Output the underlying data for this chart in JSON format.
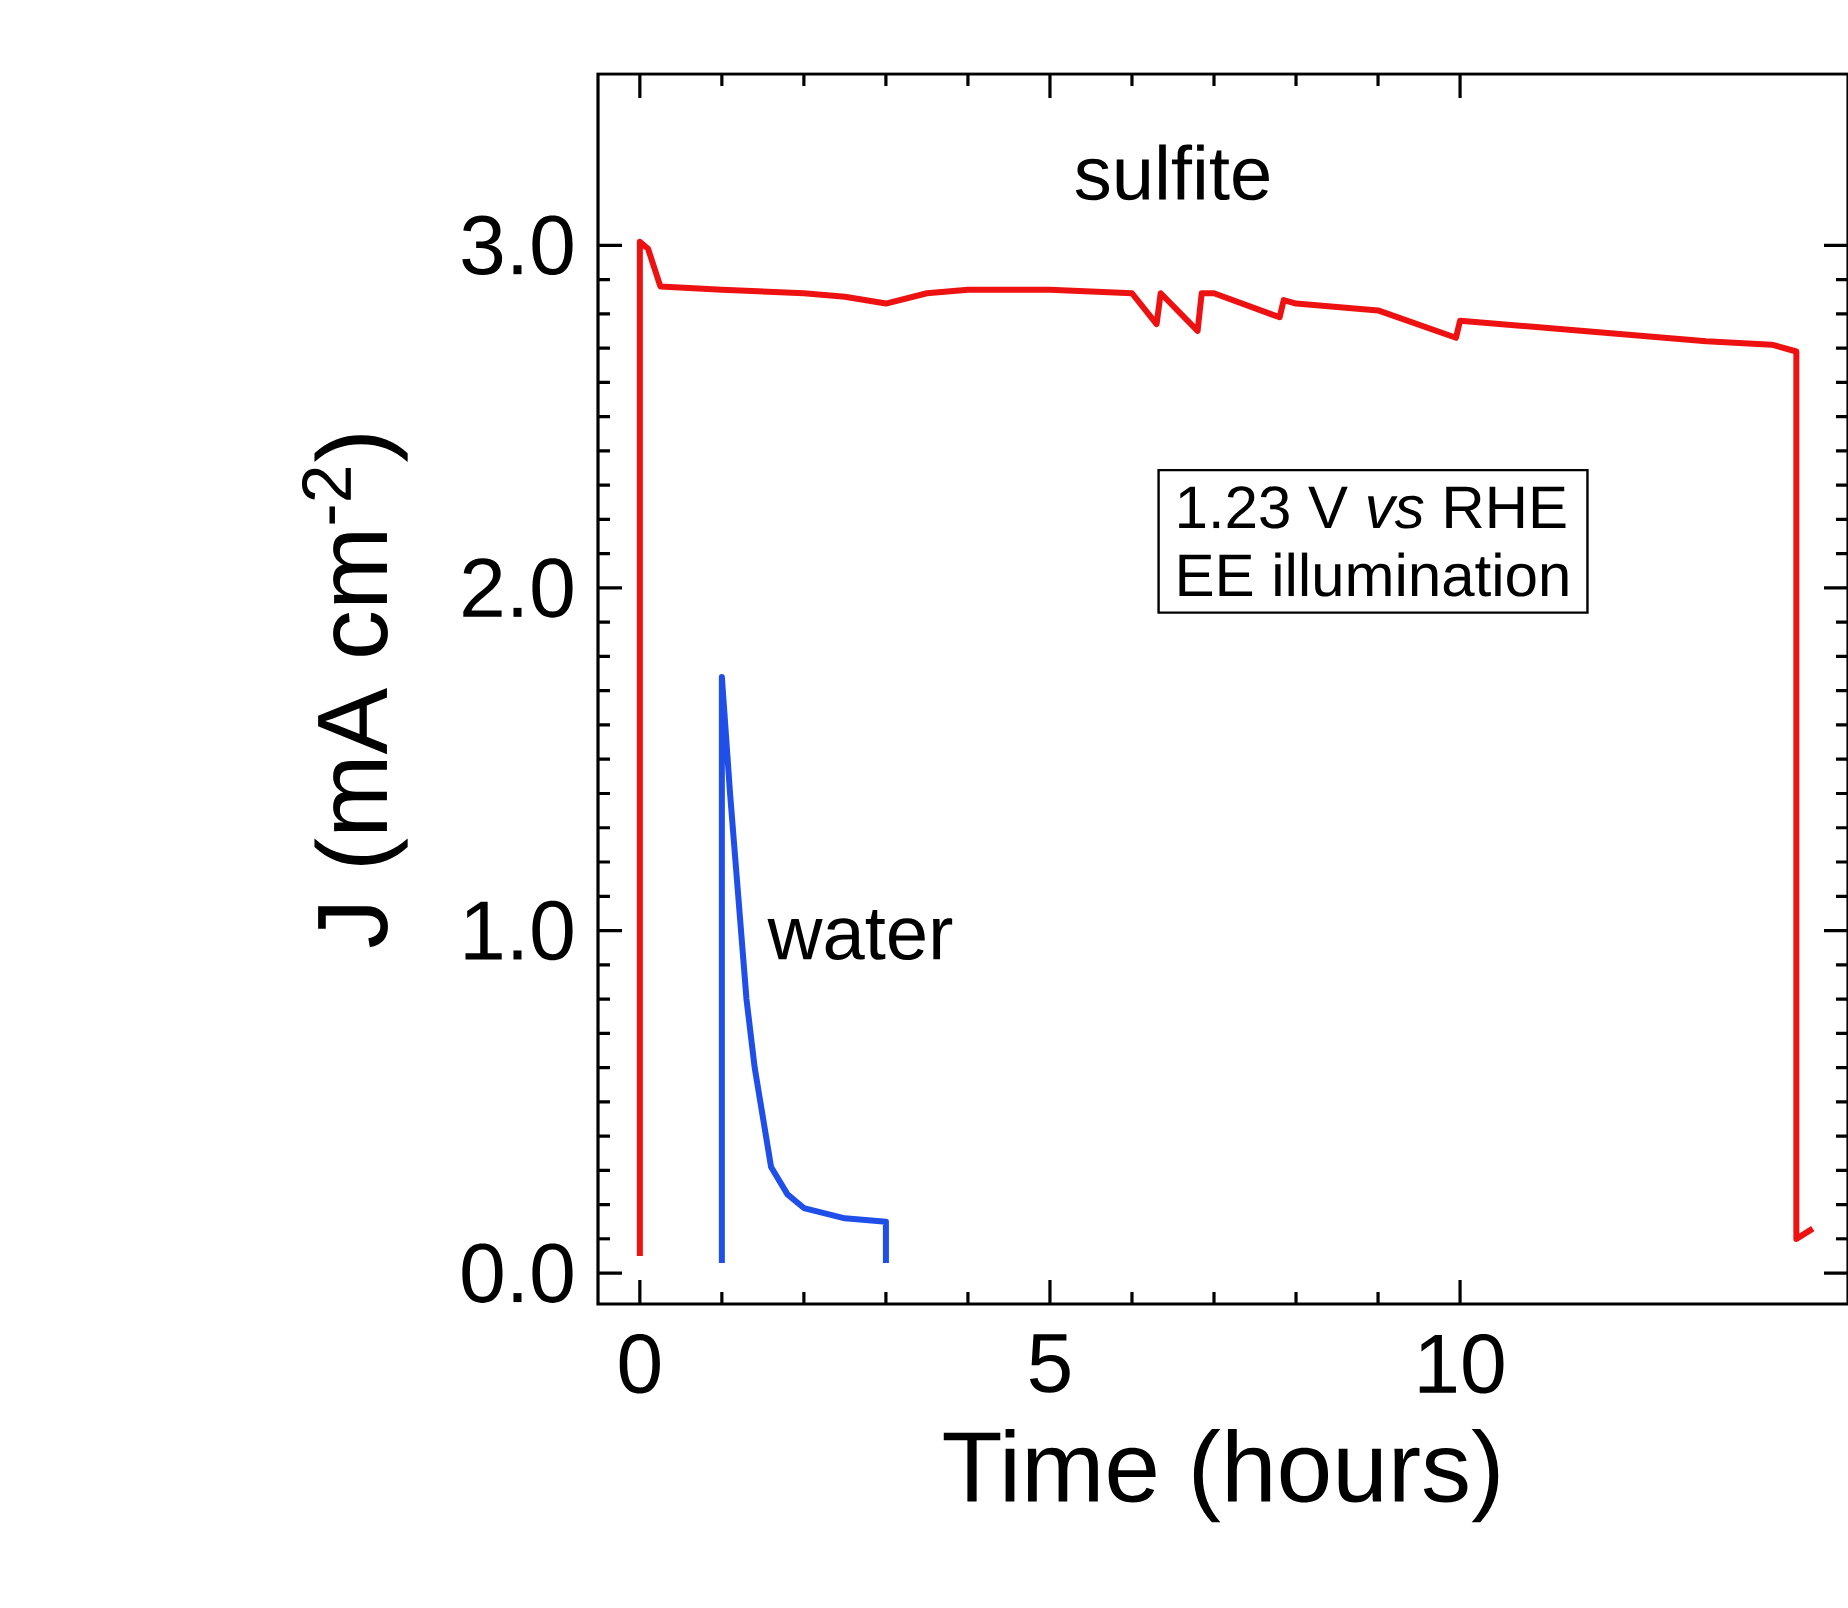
{
  "chart_data": {
    "type": "line",
    "xlabel": "Time (hours)",
    "ylabel": "J (mA cm$^{-2}$)",
    "xlim": [
      -0.51,
      14.73
    ],
    "ylim": [
      -0.09,
      3.5
    ],
    "xticks": [
      0,
      5,
      10
    ],
    "yticks": [
      {
        "value": 0,
        "label": "0.0"
      },
      {
        "value": 1,
        "label": "1.0"
      },
      {
        "value": 2,
        "label": "2.0"
      },
      {
        "value": 3,
        "label": "3.0"
      }
    ],
    "series": [
      {
        "name": "sulfite",
        "color": "#ee1111",
        "x": [
          0,
          0,
          0.1,
          0.25,
          1,
          2,
          2.5,
          3,
          3.5,
          4,
          5,
          6,
          6.3,
          6.35,
          6.8,
          6.85,
          7,
          7.8,
          7.85,
          8,
          9,
          9.95,
          10,
          11,
          12,
          13,
          13.8,
          14.1,
          14.1,
          14.3
        ],
        "values": [
          0.05,
          3.01,
          2.99,
          2.88,
          2.87,
          2.86,
          2.85,
          2.83,
          2.86,
          2.87,
          2.87,
          2.86,
          2.77,
          2.86,
          2.75,
          2.86,
          2.86,
          2.79,
          2.84,
          2.83,
          2.81,
          2.73,
          2.78,
          2.76,
          2.74,
          2.72,
          2.71,
          2.69,
          0.1,
          0.13
        ]
      },
      {
        "name": "water",
        "color": "#1f4ee8",
        "x": [
          1,
          1,
          1.1,
          1.2,
          1.3,
          1.4,
          1.6,
          1.8,
          2.0,
          2.5,
          3.0,
          3.0
        ],
        "values": [
          0.03,
          1.74,
          1.4,
          1.1,
          0.8,
          0.6,
          0.31,
          0.23,
          0.19,
          0.16,
          0.15,
          0.03
        ]
      }
    ],
    "annotations": [
      "1.23 V *vs* RHE",
      "EE illumination"
    ]
  }
}
